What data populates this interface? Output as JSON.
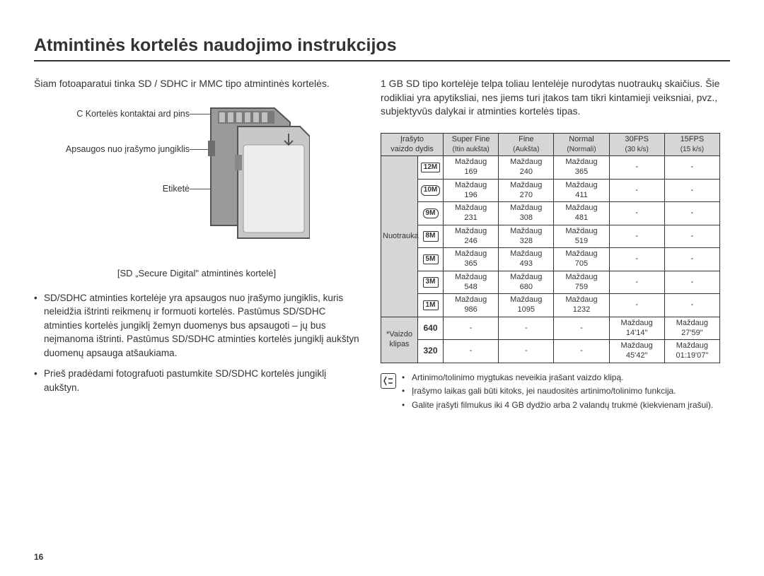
{
  "title": "Atmintinės kortelės naudojimo instrukcijos",
  "left": {
    "intro": "Šiam fotoaparatui tinka SD / SDHC ir MMC tipo atmintinės kortelės.",
    "labels": {
      "contacts": "C Kortelės kontaktai\nard pins",
      "switch": "Apsaugos nuo įrašymo\njungiklis",
      "label": "Etiketė"
    },
    "caption": "[SD „Secure Digital\" atmintinės kortelė]",
    "bullets": [
      "SD/SDHC atminties kortelėje yra apsaugos nuo įrašymo jungiklis, kuris neleidžia ištrinti reikmenų ir formuoti kortelės. Pastūmus SD/SDHC atminties kortelės jungiklį žemyn duomenys bus apsaugoti – jų bus neįmanoma ištrinti. Pastūmus SD/SDHC atminties kortelės jungiklį aukštyn duomenų apsauga atšaukiama.",
      "Prieš pradėdami fotografuoti pastumkite SD/SDHC kortelės jungiklį aukštyn."
    ]
  },
  "right": {
    "intro": "1 GB SD tipo kortelėje telpa toliau lentelėje nurodytas nuotraukų skaičius. Šie rodikliai yra apytiksliai, nes jiems turi įtakos tam tikri kintamieji veiksniai, pvz., subjektyvūs dalykai ir atminties kortelės tipas.",
    "headers": {
      "size": "Įrašyto\nvaizdo dydis",
      "q1": "Super Fine",
      "q1s": "(Itin aukšta)",
      "q2": "Fine",
      "q2s": "(Aukšta)",
      "q3": "Normal",
      "q3s": "(Normali)",
      "q4": "30FPS",
      "q4s": "(30 k/s)",
      "q5": "15FPS",
      "q5s": "(15 k/s)"
    },
    "rowgroups": {
      "photo": "Nuotrauka",
      "video": "*Vaizdo\nklipas"
    },
    "approx": "Maždaug",
    "dash": "-",
    "photo_sizes": [
      "12M",
      "10M",
      "9M",
      "8M",
      "5M",
      "3M",
      "1M"
    ],
    "photo_rows": [
      [
        "169",
        "240",
        "365"
      ],
      [
        "196",
        "270",
        "411"
      ],
      [
        "231",
        "308",
        "481"
      ],
      [
        "246",
        "328",
        "519"
      ],
      [
        "365",
        "493",
        "705"
      ],
      [
        "548",
        "680",
        "759"
      ],
      [
        "986",
        "1095",
        "1232"
      ]
    ],
    "video_sizes": [
      "640",
      "320"
    ],
    "video_rows": [
      [
        "14'14\"",
        "27'59\""
      ],
      [
        "45'42\"",
        "01:19'07\""
      ]
    ],
    "notes": [
      "Artinimo/tolinimo mygtukas neveikia įrašant vaizdo klipą.",
      "Įrašymo laikas gali būti kitoks, jei naudositės artinimo/tolinimo funkcija.",
      "Galite įrašyti filmukus iki 4 GB dydžio arba 2 valandų trukmė (kiekvienam įrašui)."
    ]
  },
  "pageNumber": "16",
  "colors": {
    "headerBg": "#d6d6d6",
    "border": "#333333"
  }
}
